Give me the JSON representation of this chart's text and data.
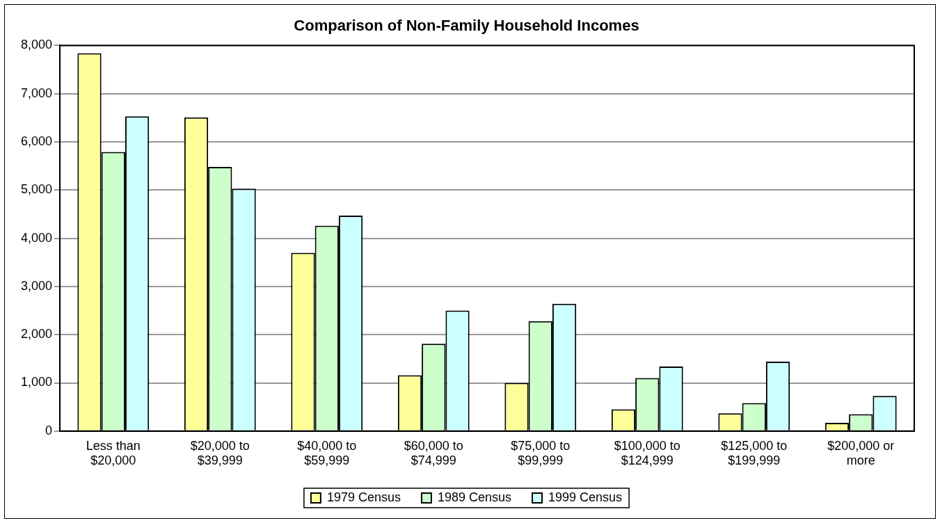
{
  "chart_data": {
    "type": "bar",
    "title": "Comparison of Non-Family Household Incomes",
    "categories": [
      "Less than $20,000",
      "$20,000 to $39,999",
      "$40,000 to $59,999",
      "$60,000 to $74,999",
      "$75,000 to $99,999",
      "$100,000 to $124,999",
      "$125,000 to $199,999",
      "$200,000 or more"
    ],
    "series": [
      {
        "name": "1979 Census",
        "color": "#ffff99",
        "values": [
          7840,
          6510,
          3700,
          1160,
          1000,
          450,
          370,
          170
        ]
      },
      {
        "name": "1989 Census",
        "color": "#ccffcc",
        "values": [
          5790,
          5480,
          4260,
          1810,
          2280,
          1100,
          580,
          350
        ]
      },
      {
        "name": "1999 Census",
        "color": "#ccffff",
        "values": [
          6530,
          5030,
          4470,
          2500,
          2640,
          1340,
          1440,
          730
        ]
      }
    ],
    "ylim": [
      0,
      8000
    ],
    "yticks": [
      {
        "value": 0,
        "label": "0"
      },
      {
        "value": 1000,
        "label": "1,000"
      },
      {
        "value": 2000,
        "label": "2,000"
      },
      {
        "value": 3000,
        "label": "3,000"
      },
      {
        "value": 4000,
        "label": "4,000"
      },
      {
        "value": 5000,
        "label": "5,000"
      },
      {
        "value": 6000,
        "label": "6,000"
      },
      {
        "value": 7000,
        "label": "7,000"
      },
      {
        "value": 8000,
        "label": "8,000"
      }
    ],
    "grid": "y",
    "legend": "bottom"
  }
}
